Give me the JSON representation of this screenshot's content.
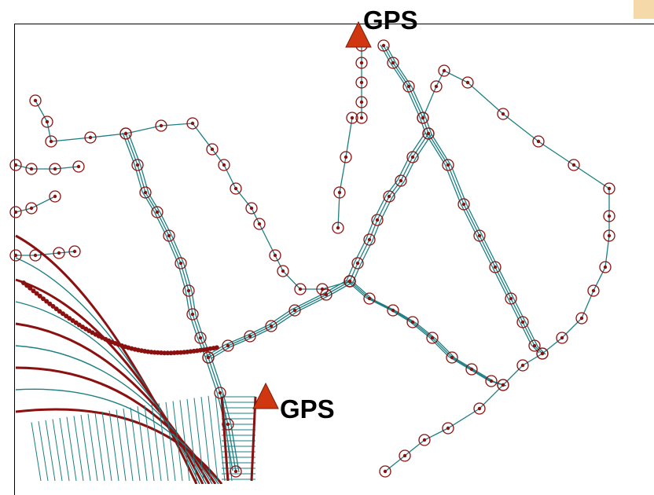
{
  "colors": {
    "network_line": "#1b7f82",
    "point_marker": "#8b1010",
    "gps_triangle": "#d0360f",
    "frame": "#000000",
    "corner_accent": "#f6d9a8"
  },
  "markers": [
    {
      "label": "GPS",
      "icon": "triangle-marker-icon"
    },
    {
      "label": "GPS",
      "icon": "triangle-marker-icon"
    }
  ]
}
